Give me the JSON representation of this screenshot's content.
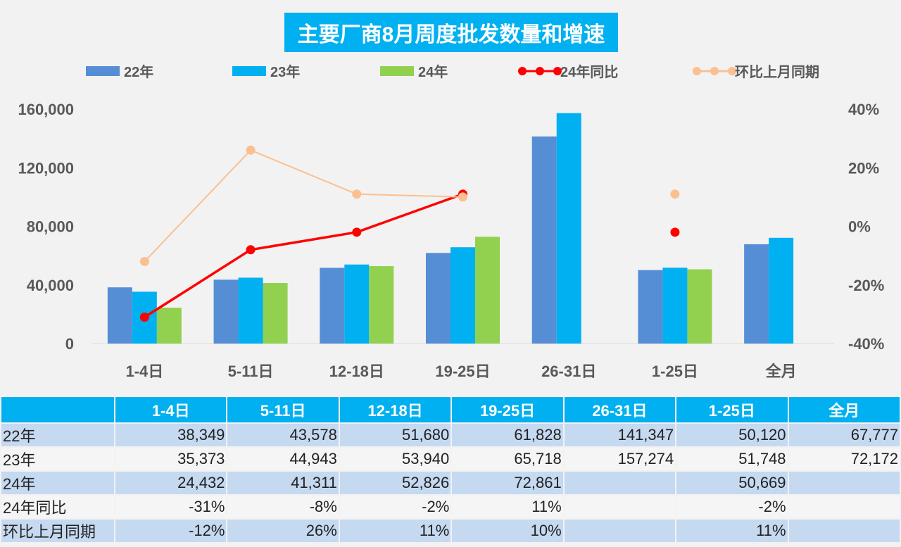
{
  "chart_data": {
    "type": "bar",
    "title": "主要厂商8月周度批发数量和增速",
    "categories": [
      "1-4日",
      "5-11日",
      "12-18日",
      "19-25日",
      "26-31日",
      "1-25日",
      "全月"
    ],
    "series": [
      {
        "name": "22年",
        "type": "bar",
        "axis": "left",
        "color": "#558ed5",
        "values": [
          38349,
          43578,
          51680,
          61828,
          141347,
          50120,
          67777
        ]
      },
      {
        "name": "23年",
        "type": "bar",
        "axis": "left",
        "color": "#00b0f0",
        "values": [
          35373,
          44943,
          53940,
          65718,
          157274,
          51748,
          72172
        ]
      },
      {
        "name": "24年",
        "type": "bar",
        "axis": "left",
        "color": "#92d050",
        "values": [
          24432,
          41311,
          52826,
          72861,
          null,
          50669,
          null
        ]
      },
      {
        "name": "24年同比",
        "type": "line",
        "axis": "right",
        "color": "#ff0000",
        "values": [
          -31,
          -8,
          -2,
          11,
          null,
          -2,
          null
        ]
      },
      {
        "name": "环比上月同期",
        "type": "line",
        "axis": "right",
        "color": "#fac090",
        "values": [
          -12,
          26,
          11,
          10,
          null,
          11,
          null
        ]
      }
    ],
    "y_left": {
      "range": [
        0,
        160000
      ],
      "ticks": [
        "0",
        "40,000",
        "80,000",
        "120,000",
        "160,000"
      ]
    },
    "y_right": {
      "range": [
        -40,
        40
      ],
      "ticks": [
        "-40%",
        "-20%",
        "0%",
        "20%",
        "40%"
      ]
    },
    "legend_position": "top",
    "grid": false
  },
  "table": {
    "header": [
      "",
      "1-4日",
      "5-11日",
      "12-18日",
      "19-25日",
      "26-31日",
      "1-25日",
      "全月"
    ],
    "rows": [
      [
        "22年",
        "38,349",
        "43,578",
        "51,680",
        "61,828",
        "141,347",
        "50,120",
        "67,777"
      ],
      [
        "23年",
        "35,373",
        "44,943",
        "53,940",
        "65,718",
        "157,274",
        "51,748",
        "72,172"
      ],
      [
        "24年",
        "24,432",
        "41,311",
        "52,826",
        "72,861",
        "",
        "50,669",
        ""
      ],
      [
        "24年同比",
        "-31%",
        "-8%",
        "-2%",
        "11%",
        "",
        "-2%",
        ""
      ],
      [
        "环比上月同期",
        "-12%",
        "26%",
        "11%",
        "10%",
        "",
        "11%",
        ""
      ]
    ]
  }
}
